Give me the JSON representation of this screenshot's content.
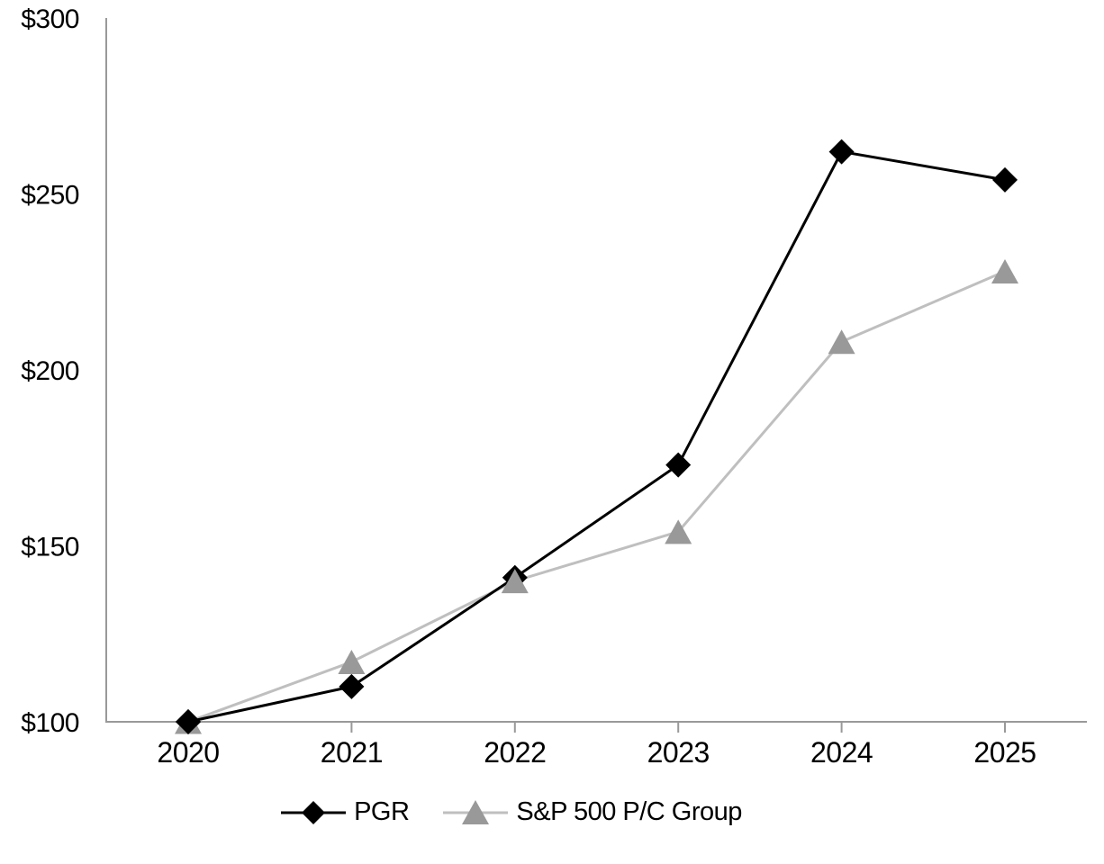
{
  "chart_data": {
    "type": "line",
    "title": "",
    "categories": [
      "2020",
      "2021",
      "2022",
      "2023",
      "2024",
      "2025"
    ],
    "series": [
      {
        "name": "PGR",
        "values": [
          100,
          110,
          141,
          173,
          262,
          254
        ],
        "line_color": "#000000",
        "marker": "diamond",
        "marker_color": "#000000"
      },
      {
        "name": "S&P 500 P/C Group",
        "values": [
          100,
          117,
          140,
          154,
          208,
          228
        ],
        "line_color": "#bfbfbf",
        "marker": "triangle",
        "marker_color": "#999999"
      }
    ],
    "y_axis": {
      "prefix": "$",
      "min": 100,
      "max": 300,
      "tick_step": 50,
      "tick_values": [
        100,
        150,
        200,
        250,
        300
      ],
      "tick_labels": [
        "$100",
        "$150",
        "$200",
        "$250",
        "$300"
      ]
    },
    "x_axis": {
      "tick_labels": [
        "2020",
        "2021",
        "2022",
        "2023",
        "2024",
        "2025"
      ]
    },
    "ylim": [
      100,
      300
    ],
    "grid": false,
    "axis_color": "#999999",
    "background_color": "#ffffff",
    "legend": {
      "position": "bottom",
      "entries": [
        "PGR",
        "S&P 500 P/C Group"
      ]
    }
  }
}
